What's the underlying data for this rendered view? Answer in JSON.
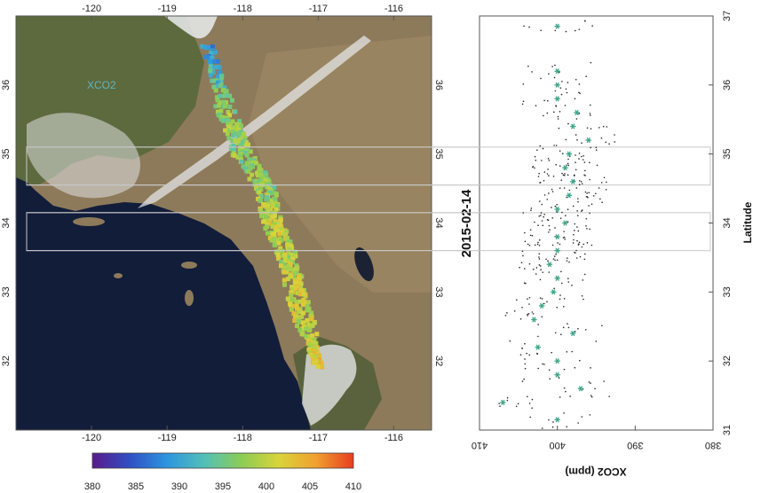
{
  "colors": {
    "ocean": "#121d3a",
    "land": "#8d7a5a",
    "land_dark": "#5d6a3e",
    "mountain_green": "#4c5d35",
    "cloud": "#e9ecef",
    "box_stroke": "#c8c8c8",
    "star": "#3aa58a",
    "dot": "#222222"
  },
  "map": {
    "overlay_label": "XCO2",
    "lon_ticks": [
      "-120",
      "-119",
      "-118",
      "-117",
      "-116"
    ],
    "lat_ticks": [
      "32",
      "33",
      "34",
      "35",
      "36"
    ]
  },
  "colorbar": {
    "ticks": [
      "380",
      "385",
      "390",
      "395",
      "400",
      "405",
      "410"
    ],
    "stops": [
      "#5a1b8c",
      "#2f4fc4",
      "#2d95df",
      "#52c0b8",
      "#8ccc55",
      "#d8d43a",
      "#f0a030",
      "#e83d1f"
    ]
  },
  "scatter": {
    "date_label": "2015-02-14",
    "xlabel": "XCO2 (ppm)",
    "ylabel": "Latitude",
    "x_ticks": [
      "410",
      "400",
      "390",
      "380"
    ],
    "y_ticks": [
      "31",
      "32",
      "33",
      "34",
      "35",
      "36",
      "37"
    ]
  },
  "chart_data": [
    {
      "type": "heatmap",
      "x_range": [
        -121,
        -115.5
      ],
      "y_range": [
        31,
        37
      ],
      "colorbar_range": [
        380,
        410
      ],
      "boxes": [
        {
          "lat_min": 34.55,
          "lat_max": 35.1
        },
        {
          "lat_min": 33.6,
          "lat_max": 34.15
        }
      ],
      "swath": [
        {
          "lon": -118.45,
          "lat": 36.55,
          "xco2": 388
        },
        {
          "lon": -118.2,
          "lat": 35.55,
          "xco2": 398
        },
        {
          "lon": -118.0,
          "lat": 35.0,
          "xco2": 397
        },
        {
          "lon": -117.7,
          "lat": 34.5,
          "xco2": 397
        },
        {
          "lon": -117.6,
          "lat": 34.0,
          "xco2": 401
        },
        {
          "lon": -117.4,
          "lat": 33.5,
          "xco2": 399
        },
        {
          "lon": -117.3,
          "lat": 33.0,
          "xco2": 401
        },
        {
          "lon": -117.1,
          "lat": 32.3,
          "xco2": 400
        },
        {
          "lon": -117.0,
          "lat": 31.9,
          "xco2": 403
        }
      ]
    },
    {
      "type": "scatter",
      "xlabel": "XCO2 (ppm)",
      "ylabel": "Latitude",
      "xlim": [
        410,
        380
      ],
      "ylim": [
        31,
        37
      ],
      "box_bands": [
        {
          "lat_min": 34.55,
          "lat_max": 35.1
        },
        {
          "lat_min": 33.6,
          "lat_max": 34.15
        }
      ],
      "series": [
        {
          "values": [
            [
              400,
              36.85
            ],
            [
              400,
              36.2
            ],
            [
              400,
              36.0
            ],
            [
              400,
              35.8
            ],
            [
              397.5,
              35.6
            ],
            [
              398,
              35.4
            ],
            [
              396,
              35.2
            ],
            [
              398.5,
              35.0
            ],
            [
              399,
              34.8
            ],
            [
              398,
              34.6
            ],
            [
              398.5,
              34.4
            ],
            [
              400,
              34.2
            ],
            [
              399,
              34.0
            ],
            [
              400,
              33.8
            ],
            [
              400,
              33.6
            ],
            [
              401,
              33.4
            ],
            [
              400,
              33.2
            ],
            [
              400.5,
              33.0
            ],
            [
              402,
              32.8
            ],
            [
              403,
              32.6
            ],
            [
              398,
              32.4
            ],
            [
              402.5,
              32.2
            ],
            [
              400,
              32.0
            ],
            [
              400,
              31.8
            ],
            [
              397,
              31.6
            ],
            [
              407,
              31.4
            ],
            [
              400,
              31.15
            ]
          ]
        }
      ]
    }
  ]
}
